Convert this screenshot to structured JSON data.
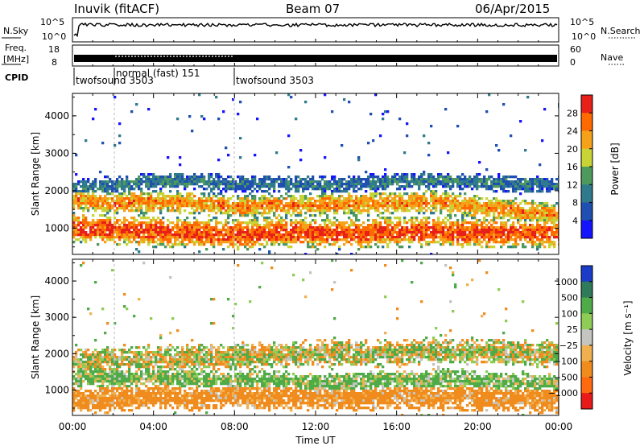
{
  "header": {
    "station": "Inuvik (fitACF)",
    "beam": "Beam 07",
    "date": "06/Apr/2015"
  },
  "status_panels": {
    "nsky": {
      "label": "N.Sky",
      "ticks": [
        "10^5",
        "10^0"
      ]
    },
    "nsearch": {
      "label": "N.Search",
      "ticks": [
        "10^5",
        "10^0"
      ]
    },
    "freq": {
      "label_line1": "Freq.",
      "label_line2": "[MHz]",
      "ticks": [
        "18",
        "8"
      ]
    },
    "nave": {
      "label": "Nave",
      "ticks": [
        "60",
        "0"
      ]
    },
    "cpid": {
      "label": "CPID",
      "segments": [
        {
          "name": "twofsound 3503",
          "start_hour": 0,
          "end_hour": 2
        },
        {
          "name": "normal (fast) 151",
          "start_hour": 2,
          "end_hour": 8
        },
        {
          "name": "twofsound 3503",
          "start_hour": 8,
          "end_hour": 24
        }
      ]
    }
  },
  "chart_data": [
    {
      "type": "heatmap",
      "title": "",
      "quantity": "Power",
      "xlabel": "",
      "ylabel": "Slant Range [km]",
      "xlim": [
        0,
        24
      ],
      "ylim": [
        300,
        4600
      ],
      "yticks": [
        "1000",
        "2000",
        "3000",
        "4000"
      ],
      "colorbar": {
        "label": "Power [dB]",
        "ticks": [
          "4",
          "8",
          "12",
          "16",
          "20",
          "24",
          "28"
        ],
        "colors": [
          "#1414ff",
          "#1f4fb0",
          "#2f7a8c",
          "#4e9a5e",
          "#c8d436",
          "#f5a21a",
          "#ff6a00",
          "#e8201a"
        ]
      },
      "bands": [
        {
          "hours": [
            0,
            2,
            4,
            6,
            8,
            10,
            12,
            14,
            16,
            18,
            20,
            22,
            24
          ],
          "center_km": [
            1050,
            1000,
            950,
            900,
            850,
            950,
            900,
            900,
            950,
            950,
            900,
            900,
            900
          ],
          "width_km": 450,
          "peak_db": 28
        },
        {
          "hours": [
            0,
            2,
            4,
            6,
            8,
            10,
            12,
            14,
            16,
            18,
            20,
            22,
            24
          ],
          "center_km": [
            1800,
            1700,
            1750,
            1700,
            1600,
            1650,
            1650,
            1700,
            1700,
            1750,
            1600,
            1500,
            1400
          ],
          "width_km": 350,
          "peak_db": 24
        },
        {
          "hours": [
            0,
            2,
            4,
            6,
            8,
            10,
            12,
            14,
            16,
            18,
            20,
            22,
            24
          ],
          "center_km": [
            2100,
            2200,
            2300,
            2300,
            2200,
            2200,
            2200,
            2200,
            2300,
            2300,
            2250,
            2200,
            2200
          ],
          "width_km": 250,
          "peak_db": 10
        }
      ]
    },
    {
      "type": "heatmap",
      "title": "",
      "quantity": "Velocity",
      "xlabel": "Time UT",
      "ylabel": "Slant Range [km]",
      "xlim": [
        0,
        24
      ],
      "ylim": [
        300,
        4600
      ],
      "xticks": [
        "00:00",
        "04:00",
        "08:00",
        "12:00",
        "16:00",
        "20:00",
        "00:00"
      ],
      "yticks": [
        "1000",
        "2000",
        "3000",
        "4000"
      ],
      "colorbar": {
        "label": "Velocity [m s⁻¹]",
        "ticks": [
          "1000",
          "500",
          "100",
          "25",
          "−25",
          "−100",
          "−500",
          "−1000"
        ],
        "colors": [
          "#1a3cc8",
          "#2f7a5a",
          "#4faa48",
          "#8fcc55",
          "#c4c4c0",
          "#f0b050",
          "#f08c1e",
          "#ff6a10",
          "#e81a1a"
        ]
      },
      "bands": [
        {
          "hours": [
            0,
            2,
            4,
            6,
            8,
            10,
            12,
            14,
            16,
            18,
            20,
            22,
            24
          ],
          "center_km": [
            750,
            800,
            850,
            800,
            900,
            850,
            850,
            800,
            850,
            850,
            800,
            800,
            750
          ],
          "width_km": 400,
          "velocity_ms": -250
        },
        {
          "hours": [
            0,
            2,
            4,
            6,
            8,
            10,
            12,
            14,
            16,
            18,
            20,
            22,
            24
          ],
          "center_km": [
            1400,
            1350,
            1400,
            1350,
            1300,
            1300,
            1200,
            1250,
            1300,
            1350,
            1300,
            1250,
            1200
          ],
          "width_km": 300,
          "velocity_ms": 150
        },
        {
          "hours": [
            0,
            2,
            4,
            6,
            8,
            10,
            12,
            14,
            16,
            18,
            20,
            22,
            24
          ],
          "center_km": [
            1800,
            1850,
            1900,
            1900,
            1950,
            2000,
            2050,
            2050,
            2050,
            2100,
            2100,
            2050,
            2000
          ],
          "width_km": 400,
          "velocity_ms": 0
        }
      ]
    }
  ]
}
